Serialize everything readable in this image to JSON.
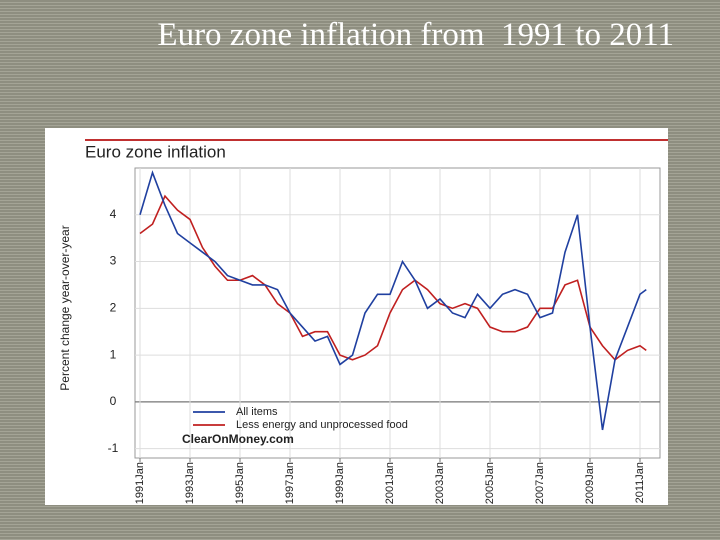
{
  "slide": {
    "title": "Euro zone inflation from  1991 to 2011"
  },
  "chart_data": {
    "type": "line",
    "title": "Euro zone inflation",
    "y_label": "Percent change year-over-year",
    "watermark": "ClearOnMoney.com",
    "x": [
      1991,
      1991.5,
      1992,
      1992.5,
      1993,
      1993.5,
      1994,
      1994.5,
      1995,
      1995.5,
      1996,
      1996.5,
      1997,
      1997.5,
      1998,
      1998.5,
      1999,
      1999.5,
      2000,
      2000.5,
      2001,
      2001.5,
      2002,
      2002.5,
      2003,
      2003.5,
      2004,
      2004.5,
      2005,
      2005.5,
      2006,
      2006.5,
      2007,
      2007.5,
      2008,
      2008.5,
      2009,
      2009.5,
      2010,
      2010.5,
      2011,
      2011.25
    ],
    "series": [
      {
        "name": "All items",
        "color": "#2040a0",
        "values": [
          4.0,
          4.9,
          4.2,
          3.6,
          3.4,
          3.2,
          3.0,
          2.7,
          2.6,
          2.5,
          2.5,
          2.4,
          1.9,
          1.6,
          1.3,
          1.4,
          0.8,
          1.0,
          1.9,
          2.3,
          2.3,
          3.0,
          2.6,
          2.0,
          2.2,
          1.9,
          1.8,
          2.3,
          2.0,
          2.3,
          2.4,
          2.3,
          1.8,
          1.9,
          3.2,
          4.0,
          1.6,
          -0.6,
          0.9,
          1.6,
          2.3,
          2.4
        ]
      },
      {
        "name": "Less energy and unprocessed food",
        "color": "#c02020",
        "values": [
          3.6,
          3.8,
          4.4,
          4.1,
          3.9,
          3.3,
          2.9,
          2.6,
          2.6,
          2.7,
          2.5,
          2.1,
          1.9,
          1.4,
          1.5,
          1.5,
          1.0,
          0.9,
          1.0,
          1.2,
          1.9,
          2.4,
          2.6,
          2.4,
          2.1,
          2.0,
          2.1,
          2.0,
          1.6,
          1.5,
          1.5,
          1.6,
          2.0,
          2.0,
          2.5,
          2.6,
          1.6,
          1.2,
          0.9,
          1.1,
          1.2,
          1.1
        ]
      }
    ],
    "xlim": [
      1990.8,
      2011.8
    ],
    "xticks": [
      {
        "value": 1991,
        "label": "1991Jan"
      },
      {
        "value": 1993,
        "label": "1993Jan"
      },
      {
        "value": 1995,
        "label": "1995Jan"
      },
      {
        "value": 1997,
        "label": "1997Jan"
      },
      {
        "value": 1999,
        "label": "1999Jan"
      },
      {
        "value": 2001,
        "label": "2001Jan"
      },
      {
        "value": 2003,
        "label": "2003Jan"
      },
      {
        "value": 2005,
        "label": "2005Jan"
      },
      {
        "value": 2007,
        "label": "2007Jan"
      },
      {
        "value": 2009,
        "label": "2009Jan"
      },
      {
        "value": 2011,
        "label": "2011Jan"
      }
    ],
    "ylim": [
      -1.2,
      5
    ],
    "yticks": [
      -1,
      0,
      1,
      2,
      3,
      4
    ],
    "grid": true
  }
}
